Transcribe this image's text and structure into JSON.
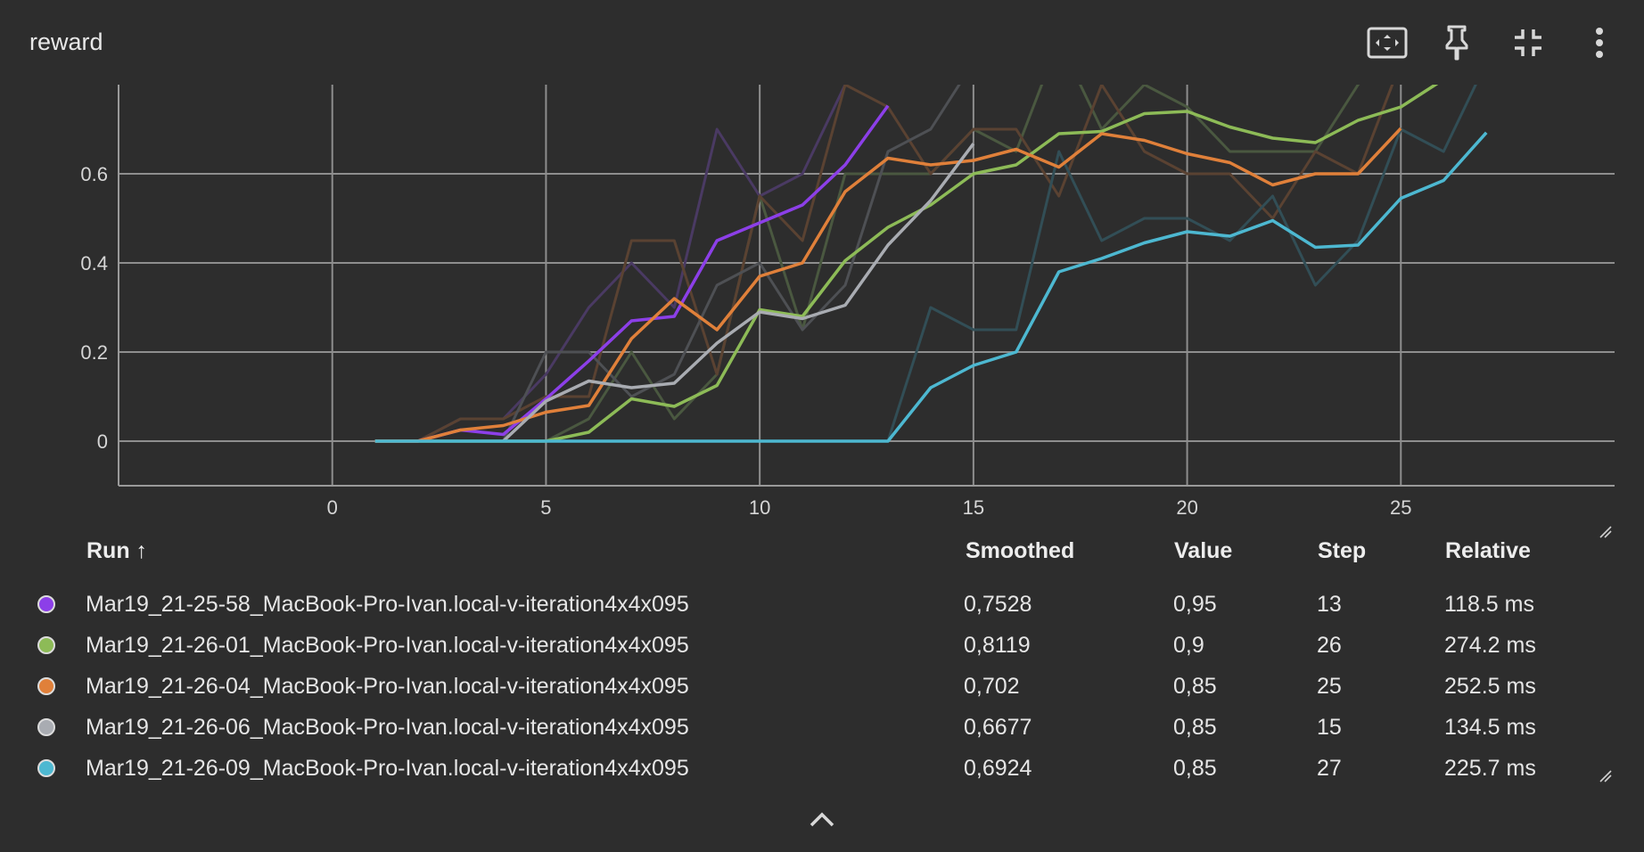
{
  "header": {
    "title": "reward"
  },
  "toolbar": [
    {
      "name": "fit-to-data-icon"
    },
    {
      "name": "pin-icon"
    },
    {
      "name": "collapse-icon"
    },
    {
      "name": "more-vert-icon"
    }
  ],
  "table": {
    "headers": {
      "run": "Run ↑",
      "smoothed": "Smoothed",
      "value": "Value",
      "step": "Step",
      "relative": "Relative"
    },
    "rows": [
      {
        "color": "#8c3fe8",
        "run": "Mar19_21-25-58_MacBook-Pro-Ivan.local-v-iteration4x4x095",
        "smoothed": "0,7528",
        "value": "0,95",
        "step": "13",
        "relative": "118.5 ms"
      },
      {
        "color": "#8dbb57",
        "run": "Mar19_21-26-01_MacBook-Pro-Ivan.local-v-iteration4x4x095",
        "smoothed": "0,8119",
        "value": "0,9",
        "step": "26",
        "relative": "274.2 ms"
      },
      {
        "color": "#e0803a",
        "run": "Mar19_21-26-04_MacBook-Pro-Ivan.local-v-iteration4x4x095",
        "smoothed": "0,702",
        "value": "0,85",
        "step": "25",
        "relative": "252.5 ms"
      },
      {
        "color": "#a9acb2",
        "run": "Mar19_21-26-06_MacBook-Pro-Ivan.local-v-iteration4x4x095",
        "smoothed": "0,6677",
        "value": "0,85",
        "step": "15",
        "relative": "134.5 ms"
      },
      {
        "color": "#4db8d1",
        "run": "Mar19_21-26-09_MacBook-Pro-Ivan.local-v-iteration4x4x095",
        "smoothed": "0,6924",
        "value": "0,85",
        "step": "27",
        "relative": "225.7 ms"
      }
    ]
  },
  "chart_data": {
    "type": "line",
    "title": "reward",
    "xlabel": "",
    "ylabel": "",
    "xlim": [
      -5,
      30
    ],
    "ylim": [
      -0.1,
      0.8
    ],
    "x_ticks": [
      "0",
      "5",
      "10",
      "15",
      "20",
      "25"
    ],
    "x_tick_values": [
      0,
      5,
      10,
      15,
      20,
      25
    ],
    "y_ticks": [
      "0",
      "0.2",
      "0.4",
      "0.6"
    ],
    "y_tick_values": [
      0,
      0.2,
      0.4,
      0.6
    ],
    "grid": true,
    "legend": "table below chart",
    "series": [
      {
        "color": "#8c3fe8",
        "raw_color": "#4a3a63",
        "x": [
          1,
          2,
          3,
          4,
          5,
          6,
          7,
          8,
          9,
          10,
          11,
          12,
          13
        ],
        "smoothed": [
          0,
          0,
          0.025,
          0.015,
          0.095,
          0.18,
          0.27,
          0.28,
          0.45,
          0.49,
          0.53,
          0.62,
          0.7528
        ],
        "raw": [
          0,
          0,
          0.05,
          0.05,
          0.15,
          0.3,
          0.4,
          0.3,
          0.7,
          0.55,
          0.6,
          0.8,
          0.95
        ]
      },
      {
        "color": "#8dbb57",
        "raw_color": "#4a5840",
        "x": [
          1,
          2,
          3,
          4,
          5,
          6,
          7,
          8,
          9,
          10,
          11,
          12,
          13,
          14,
          15,
          16,
          17,
          18,
          19,
          20,
          21,
          22,
          23,
          24,
          25,
          26
        ],
        "smoothed": [
          0,
          0,
          0,
          0,
          0,
          0.02,
          0.095,
          0.078,
          0.125,
          0.295,
          0.28,
          0.405,
          0.48,
          0.53,
          0.6,
          0.62,
          0.69,
          0.695,
          0.735,
          0.74,
          0.705,
          0.68,
          0.67,
          0.72,
          0.75,
          0.8119
        ],
        "raw": [
          0,
          0,
          0,
          0,
          0,
          0.05,
          0.2,
          0.05,
          0.15,
          0.55,
          0.25,
          0.6,
          0.6,
          0.6,
          0.7,
          0.65,
          0.9,
          0.7,
          0.8,
          0.75,
          0.65,
          0.65,
          0.65,
          0.8,
          0.9,
          0.9
        ]
      },
      {
        "color": "#e0803a",
        "raw_color": "#5a4232",
        "x": [
          1,
          2,
          3,
          4,
          5,
          6,
          7,
          8,
          9,
          10,
          11,
          12,
          13,
          14,
          15,
          16,
          17,
          18,
          19,
          20,
          21,
          22,
          23,
          24,
          25
        ],
        "smoothed": [
          0,
          0,
          0.025,
          0.035,
          0.065,
          0.08,
          0.23,
          0.32,
          0.25,
          0.37,
          0.4,
          0.56,
          0.635,
          0.62,
          0.63,
          0.655,
          0.615,
          0.69,
          0.675,
          0.645,
          0.625,
          0.575,
          0.6,
          0.6,
          0.702
        ],
        "raw": [
          0,
          0,
          0.05,
          0.05,
          0.1,
          0.1,
          0.45,
          0.45,
          0.15,
          0.55,
          0.45,
          0.8,
          0.75,
          0.6,
          0.7,
          0.7,
          0.55,
          0.8,
          0.65,
          0.6,
          0.6,
          0.5,
          0.65,
          0.6,
          0.85
        ]
      },
      {
        "color": "#a9acb2",
        "raw_color": "#4e5054",
        "x": [
          4,
          5,
          6,
          7,
          8,
          9,
          10,
          11,
          12,
          13,
          14,
          15
        ],
        "smoothed": [
          0,
          0.09,
          0.135,
          0.12,
          0.13,
          0.22,
          0.29,
          0.275,
          0.305,
          0.44,
          0.54,
          0.6677
        ],
        "raw": [
          0,
          0.2,
          0.2,
          0.1,
          0.15,
          0.35,
          0.4,
          0.25,
          0.35,
          0.65,
          0.7,
          0.85
        ]
      },
      {
        "color": "#4db8d1",
        "raw_color": "#324e56",
        "x": [
          1,
          2,
          3,
          4,
          5,
          6,
          7,
          8,
          9,
          10,
          11,
          12,
          13,
          14,
          15,
          16,
          17,
          18,
          19,
          20,
          21,
          22,
          23,
          24,
          25,
          26,
          27
        ],
        "smoothed": [
          0,
          0,
          0,
          0,
          0,
          0,
          0,
          0,
          0,
          0,
          0,
          0,
          0,
          0.12,
          0.17,
          0.2,
          0.38,
          0.41,
          0.445,
          0.47,
          0.46,
          0.495,
          0.435,
          0.44,
          0.545,
          0.585,
          0.6924
        ],
        "raw": [
          0,
          0,
          0,
          0,
          0,
          0,
          0,
          0,
          0,
          0,
          0,
          0,
          0,
          0.3,
          0.25,
          0.25,
          0.65,
          0.45,
          0.5,
          0.5,
          0.45,
          0.55,
          0.35,
          0.45,
          0.7,
          0.65,
          0.85
        ]
      }
    ]
  }
}
